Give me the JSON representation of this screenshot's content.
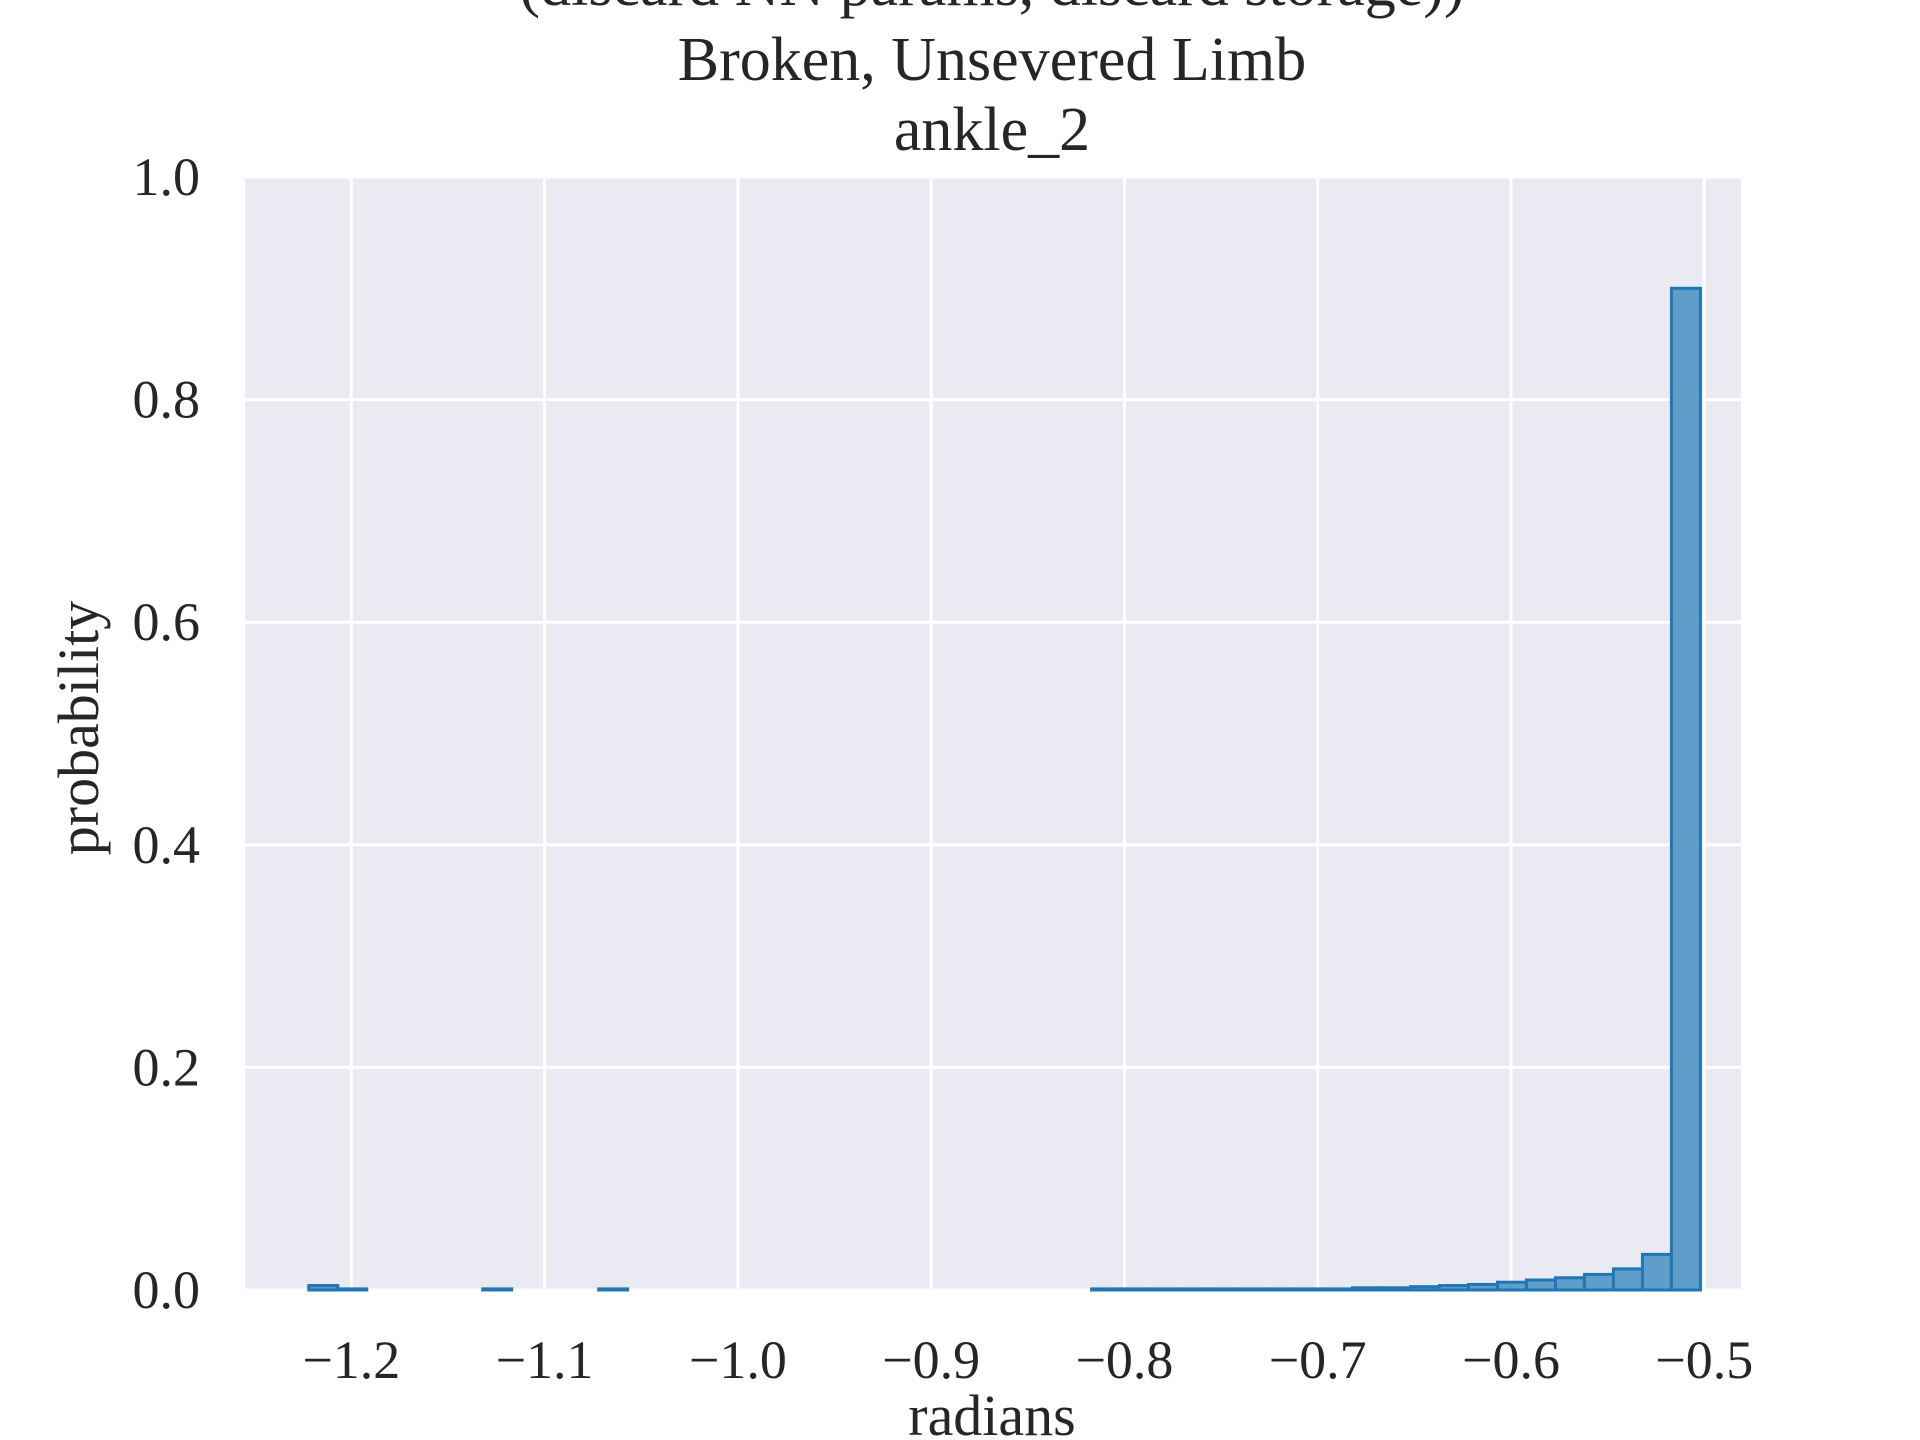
{
  "chart_data": {
    "type": "bar",
    "title_lines": [
      "(discard NN params, discard storage))",
      "Broken, Unsevered Limb",
      "ankle_2"
    ],
    "xlabel": "radians",
    "ylabel": "probability",
    "xlim": [
      -1.255,
      -0.481
    ],
    "ylim": [
      0.0,
      1.0
    ],
    "xticks": [
      -1.2,
      -1.1,
      -1.0,
      -0.9,
      -0.8,
      -0.7,
      -0.6,
      -0.5
    ],
    "xtick_labels": [
      "−1.2",
      "−1.1",
      "−1.0",
      "−0.9",
      "−0.8",
      "−0.7",
      "−0.6",
      "−0.5"
    ],
    "yticks": [
      0.0,
      0.2,
      0.4,
      0.6,
      0.8,
      1.0
    ],
    "ytick_labels": [
      "0.0",
      "0.2",
      "0.4",
      "0.6",
      "0.8",
      "1.0"
    ],
    "grid": true,
    "bin_width": 0.015,
    "bins": [
      {
        "x0": -1.222,
        "value": 0.004
      },
      {
        "x0": -1.207,
        "value": 0.001
      },
      {
        "x0": -1.132,
        "value": 0.001
      },
      {
        "x0": -1.072,
        "value": 0.001
      },
      {
        "x0": -0.817,
        "value": 0.001
      },
      {
        "x0": -0.802,
        "value": 0.001
      },
      {
        "x0": -0.787,
        "value": 0.001
      },
      {
        "x0": -0.772,
        "value": 0.001
      },
      {
        "x0": -0.757,
        "value": 0.001
      },
      {
        "x0": -0.742,
        "value": 0.001
      },
      {
        "x0": -0.727,
        "value": 0.001
      },
      {
        "x0": -0.712,
        "value": 0.001
      },
      {
        "x0": -0.697,
        "value": 0.001
      },
      {
        "x0": -0.682,
        "value": 0.002
      },
      {
        "x0": -0.667,
        "value": 0.002
      },
      {
        "x0": -0.652,
        "value": 0.003
      },
      {
        "x0": -0.637,
        "value": 0.004
      },
      {
        "x0": -0.622,
        "value": 0.005
      },
      {
        "x0": -0.607,
        "value": 0.007
      },
      {
        "x0": -0.592,
        "value": 0.009
      },
      {
        "x0": -0.577,
        "value": 0.011
      },
      {
        "x0": -0.562,
        "value": 0.014
      },
      {
        "x0": -0.547,
        "value": 0.019
      },
      {
        "x0": -0.532,
        "value": 0.032
      },
      {
        "x0": -0.517,
        "value": 0.9
      }
    ],
    "colors": {
      "background": "#eaeaf2",
      "grid": "#ffffff",
      "bar_fill": "#5799c7",
      "bar_edge": "#1f77b4"
    }
  }
}
